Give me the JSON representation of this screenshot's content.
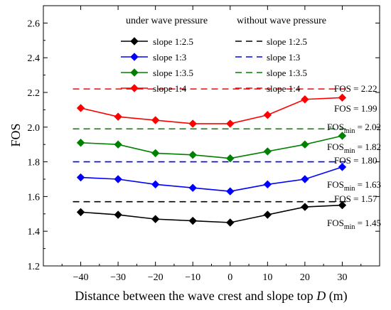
{
  "chart_data": {
    "type": "line",
    "xlabel": "Distance between the wave crest and slope top",
    "xlabel_symbol": "D",
    "xlabel_unit": "(m)",
    "ylabel": "FOS",
    "x": [
      -40,
      -30,
      -20,
      -10,
      0,
      10,
      20,
      30
    ],
    "x_ticks": [
      -40,
      -30,
      -20,
      -10,
      0,
      10,
      20,
      30
    ],
    "x_tick_labels": [
      "−40",
      "−30",
      "−20",
      "−10",
      "0",
      "10",
      "20",
      "30"
    ],
    "xlim": [
      -50,
      40
    ],
    "ylim": [
      1.2,
      2.7
    ],
    "y_ticks": [
      1.2,
      1.4,
      1.6,
      1.8,
      2.0,
      2.2,
      2.4,
      2.6
    ],
    "y_tick_labels": [
      "1.2",
      "1.4",
      "1.6",
      "1.8",
      "2.0",
      "2.2",
      "2.4",
      "2.6"
    ],
    "grid": false,
    "legend_position": "top",
    "legend_group_titles": [
      "under wave pressure",
      "without wave pressure"
    ],
    "series": [
      {
        "name": "slope 1:2.5",
        "group": "under wave pressure",
        "color": "#000000",
        "marker": "diamond",
        "style": "solid",
        "values": [
          1.51,
          1.495,
          1.47,
          1.46,
          1.45,
          1.495,
          1.54,
          1.55
        ]
      },
      {
        "name": "slope 1:3",
        "group": "under wave pressure",
        "color": "#0000ff",
        "marker": "diamond",
        "style": "solid",
        "values": [
          1.71,
          1.7,
          1.67,
          1.65,
          1.63,
          1.67,
          1.7,
          1.77
        ]
      },
      {
        "name": "slope 1:3.5",
        "group": "under wave pressure",
        "color": "#008000",
        "marker": "diamond",
        "style": "solid",
        "values": [
          1.91,
          1.9,
          1.85,
          1.84,
          1.82,
          1.86,
          1.9,
          1.95
        ]
      },
      {
        "name": "slope 1:4",
        "group": "under wave pressure",
        "color": "#ff0000",
        "marker": "diamond",
        "style": "solid",
        "values": [
          2.11,
          2.06,
          2.04,
          2.02,
          2.02,
          2.07,
          2.16,
          2.17
        ]
      }
    ],
    "reference_lines": [
      {
        "name": "slope 1:2.5",
        "group": "without wave pressure",
        "color": "#000000",
        "style": "dashed",
        "value": 1.57
      },
      {
        "name": "slope 1:3",
        "group": "without wave pressure",
        "color": "#0000ff",
        "style": "dashed",
        "value": 1.8
      },
      {
        "name": "slope 1:3.5",
        "group": "without wave pressure",
        "color": "#008000",
        "style": "dashed",
        "value": 1.99
      },
      {
        "name": "slope 1:4",
        "group": "without wave pressure",
        "color": "#ff0000",
        "style": "dashed",
        "value": 2.22
      }
    ],
    "annotations": [
      {
        "main": "FOS",
        "sub": "",
        "text": " = 2.22",
        "value": 2.22
      },
      {
        "main": "FOS",
        "sub": "min",
        "text": " = 2.02",
        "value": 2.02
      },
      {
        "main": "FOS",
        "sub": "",
        "text": " = 1.99",
        "value": 1.99
      },
      {
        "main": "FOS",
        "sub": "min",
        "text": " = 1.82",
        "value": 1.82
      },
      {
        "main": "FOS",
        "sub": "",
        "text": " = 1.80",
        "value": 1.8
      },
      {
        "main": "FOS",
        "sub": "min",
        "text": " = 1.63",
        "value": 1.63
      },
      {
        "main": "FOS",
        "sub": "",
        "text": " = 1.57",
        "value": 1.57
      },
      {
        "main": "FOS",
        "sub": "min",
        "text": " = 1.45",
        "value": 1.45
      }
    ]
  }
}
